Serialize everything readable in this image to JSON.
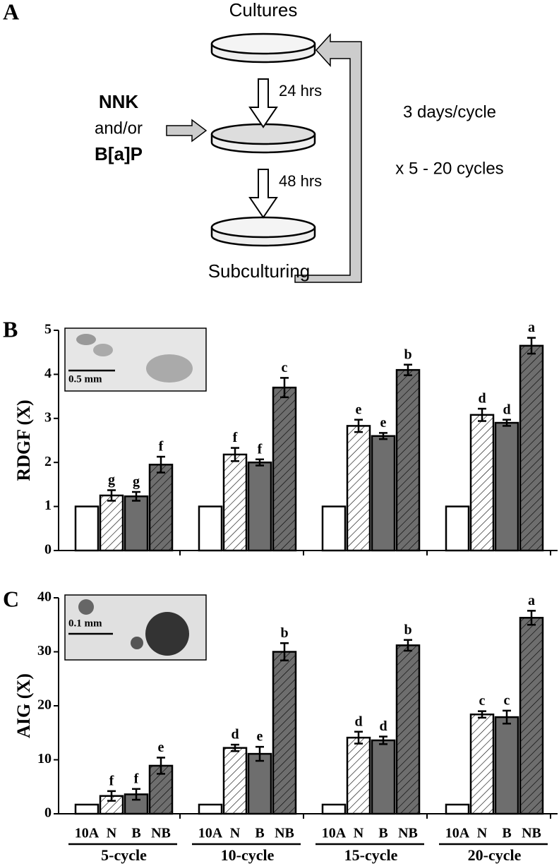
{
  "panel_a": {
    "label": "A",
    "top_dish": "Cultures",
    "bottom_dish": "Subculturing",
    "step1": "24 hrs",
    "step2": "48 hrs",
    "treatment": [
      "NNK",
      "and/or",
      "B[a]P"
    ],
    "cycle_note": [
      "3 days/cycle",
      "x 5 - 20 cycles"
    ]
  },
  "chart_data": [
    {
      "type": "bar",
      "panel_label": "B",
      "y_label": "RDGF (X)",
      "inset_scale": "0.5 mm",
      "ylim": [
        0,
        5
      ],
      "yticks": [
        0,
        1,
        2,
        3,
        4,
        5
      ],
      "series": [
        {
          "color": "#ffffff",
          "hatch": false,
          "values": [
            1,
            1,
            1,
            1
          ]
        },
        {
          "color": "#ffffff",
          "hatch": true,
          "values": [
            1.25,
            2.18,
            2.83,
            3.08
          ],
          "errors": [
            0.12,
            0.15,
            0.14,
            0.14
          ],
          "letters": [
            "g",
            "f",
            "e",
            "d"
          ]
        },
        {
          "color": "#6e6e6e",
          "hatch": false,
          "values": [
            1.23,
            2.0,
            2.6,
            2.9
          ],
          "errors": [
            0.1,
            0.07,
            0.07,
            0.07
          ],
          "letters": [
            "g",
            "f",
            "e",
            "d"
          ]
        },
        {
          "color": "#6e6e6e",
          "hatch": true,
          "values": [
            1.95,
            3.7,
            4.1,
            4.65
          ],
          "errors": [
            0.18,
            0.22,
            0.12,
            0.18
          ],
          "letters": [
            "f",
            "c",
            "b",
            "a"
          ]
        }
      ]
    },
    {
      "type": "bar",
      "panel_label": "C",
      "y_label": "AIG (X)",
      "inset_scale": "0.1 mm",
      "ylim": [
        0,
        40
      ],
      "yticks": [
        0,
        10,
        20,
        30,
        40
      ],
      "categories": [
        "5-cycle",
        "10-cycle",
        "15-cycle",
        "20-cycle"
      ],
      "series": [
        {
          "name": "10A",
          "color": "#ffffff",
          "hatch": false,
          "values": [
            1.7,
            1.7,
            1.7,
            1.7
          ]
        },
        {
          "name": "N",
          "color": "#ffffff",
          "hatch": true,
          "values": [
            3.3,
            12.2,
            14.1,
            18.4
          ],
          "errors": [
            0.9,
            0.6,
            1.1,
            0.6
          ],
          "letters": [
            "f",
            "d",
            "d",
            "c"
          ]
        },
        {
          "name": "B",
          "color": "#6e6e6e",
          "hatch": false,
          "values": [
            3.6,
            11.1,
            13.6,
            17.9
          ],
          "errors": [
            1.0,
            1.3,
            0.7,
            1.2
          ],
          "letters": [
            "f",
            "e",
            "d",
            "c"
          ]
        },
        {
          "name": "NB",
          "color": "#6e6e6e",
          "hatch": true,
          "values": [
            8.9,
            30,
            31.2,
            36.3
          ],
          "errors": [
            1.5,
            1.6,
            1.0,
            1.3
          ],
          "letters": [
            "e",
            "b",
            "b",
            "a"
          ]
        }
      ]
    }
  ]
}
